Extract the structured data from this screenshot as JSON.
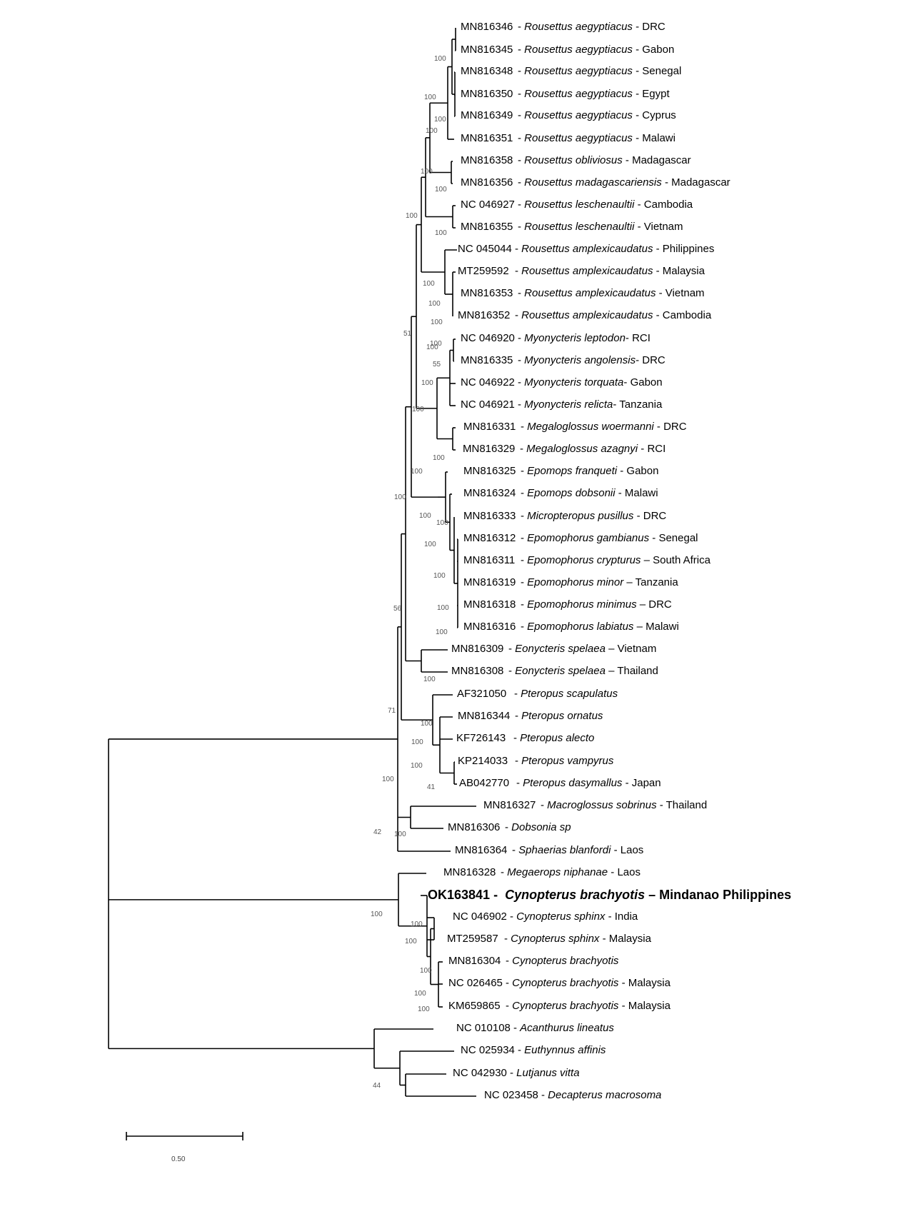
{
  "taxa": [
    {
      "acc": "MN816346",
      "sep": "- ",
      "sp": "Rousettus aegyptiacus",
      "loc": " - DRC"
    },
    {
      "acc": "MN816345",
      "sep": "- ",
      "sp": "Rousettus aegyptiacus",
      "loc": " - Gabon"
    },
    {
      "acc": "MN816348",
      "sep": "- ",
      "sp": "Rousettus aegyptiacus",
      "loc": " - Senegal"
    },
    {
      "acc": "MN816350",
      "sep": "- ",
      "sp": "Rousettus aegyptiacus",
      "loc": " - Egypt"
    },
    {
      "acc": "MN816349",
      "sep": "- ",
      "sp": "Rousettus aegyptiacus",
      "loc": " - Cyprus"
    },
    {
      "acc": "MN816351",
      "sep": "- ",
      "sp": "Rousettus aegyptiacus",
      "loc": " - Malawi"
    },
    {
      "acc": "MN816358",
      "sep": "- ",
      "sp": "Rousettus obliviosus",
      "loc": " - Madagascar"
    },
    {
      "acc": "MN816356",
      "sep": "- ",
      "sp": "Rousettus madagascariensis",
      "loc": " - Madagascar"
    },
    {
      "acc": "NC 046927",
      "sep": "- ",
      "sp": "Rousettus leschenaultii",
      "loc": " - Cambodia"
    },
    {
      "acc": "MN816355",
      "sep": "- ",
      "sp": "Rousettus leschenaultii",
      "loc": " - Vietnam"
    },
    {
      "acc": "NC 045044",
      "sep": "- ",
      "sp": "Rousettus amplexicaudatus",
      "loc": " - Philippines"
    },
    {
      "acc": "MT259592",
      "sep": "- ",
      "sp": "Rousettus amplexicaudatus",
      "loc": " - Malaysia"
    },
    {
      "acc": "MN816353",
      "sep": "- ",
      "sp": "Rousettus amplexicaudatus",
      "loc": " - Vietnam"
    },
    {
      "acc": "MN816352",
      "sep": "- ",
      "sp": "Rousettus amplexicaudatus",
      "loc": " - Cambodia"
    },
    {
      "acc": "NC 046920",
      "sep": "- ",
      "sp": "Myonycteris leptodon",
      "loc": "- RCI"
    },
    {
      "acc": "MN816335",
      "sep": "- ",
      "sp": "Myonycteris angolensis",
      "loc": "- DRC"
    },
    {
      "acc": "NC 046922",
      "sep": "- ",
      "sp": "Myonycteris torquata",
      "loc": "- Gabon"
    },
    {
      "acc": "NC 046921",
      "sep": "- ",
      "sp": "Myonycteris relicta",
      "loc": "- Tanzania"
    },
    {
      "acc": "MN816331",
      "sep": "- ",
      "sp": "Megaloglossus woermanni",
      "loc": " - DRC"
    },
    {
      "acc": "MN816329",
      "sep": "- ",
      "sp": "Megaloglossus azagnyi",
      "loc": " - RCI"
    },
    {
      "acc": "MN816325",
      "sep": "- ",
      "sp": "Epomops franqueti",
      "loc": " - Gabon"
    },
    {
      "acc": "MN816324",
      "sep": "- ",
      "sp": "Epomops dobsonii",
      "loc": " - Malawi"
    },
    {
      "acc": "MN816333",
      "sep": "- ",
      "sp": "Micropteropus pusillus",
      "loc": " - DRC"
    },
    {
      "acc": "MN816312",
      "sep": "- ",
      "sp": "Epomophorus gambianus",
      "loc": " - Senegal"
    },
    {
      "acc": "MN816311",
      "sep": "- ",
      "sp": "Epomophorus crypturus",
      "loc": " – South Africa"
    },
    {
      "acc": "MN816319",
      "sep": "- ",
      "sp": "Epomophorus minor",
      "loc": " – Tanzania"
    },
    {
      "acc": "MN816318",
      "sep": "- ",
      "sp": "Epomophorus minimus",
      "loc": " – DRC"
    },
    {
      "acc": "MN816316",
      "sep": "- ",
      "sp": "Epomophorus labiatus",
      "loc": " – Malawi"
    },
    {
      "acc": "MN816309",
      "sep": "- ",
      "sp": "Eonycteris spelaea",
      "loc": " – Vietnam"
    },
    {
      "acc": "MN816308",
      "sep": "- ",
      "sp": "Eonycteris spelaea",
      "loc": " – Thailand"
    },
    {
      "acc": "AF321050",
      "sep": "- ",
      "sp": "Pteropus scapulatus",
      "loc": ""
    },
    {
      "acc": "MN816344",
      "sep": "- ",
      "sp": "Pteropus ornatus",
      "loc": ""
    },
    {
      "acc": "KF726143",
      "sep": "- ",
      "sp": "Pteropus alecto",
      "loc": ""
    },
    {
      "acc": "KP214033",
      "sep": "- ",
      "sp": "Pteropus vampyrus",
      "loc": ""
    },
    {
      "acc": "AB042770",
      "sep": "- ",
      "sp": "Pteropus dasymallus",
      "loc": " - Japan"
    },
    {
      "acc": "MN816327",
      "sep": "- ",
      "sp": "Macroglossus sobrinus",
      "loc": " - Thailand"
    },
    {
      "acc": "MN816306",
      "sep": "- ",
      "sp": "Dobsonia sp",
      "loc": ""
    },
    {
      "acc": "MN816364",
      "sep": "- ",
      "sp": "Sphaerias blanfordi",
      "loc": " - Laos"
    },
    {
      "acc": "MN816328",
      "sep": "- ",
      "sp": "Megaerops niphanae",
      "loc": " - Laos"
    },
    {
      "acc": "OK163841 -",
      "sep": "",
      "sp": "Cynopterus  brachyotis",
      "loc": " – Mindanao  Philippines",
      "highlight": true
    },
    {
      "acc": "NC 046902",
      "sep": "- ",
      "sp": "Cynopterus sphinx",
      "loc": " - India"
    },
    {
      "acc": "MT259587",
      "sep": "- ",
      "sp": "Cynopterus sphinx",
      "loc": " - Malaysia"
    },
    {
      "acc": "MN816304",
      "sep": "- ",
      "sp": "Cynopterus brachyotis",
      "loc": ""
    },
    {
      "acc": "NC 026465",
      "sep": "- ",
      "sp": "Cynopterus brachyotis",
      "loc": " - Malaysia"
    },
    {
      "acc": "KM659865",
      "sep": "- ",
      "sp": "Cynopterus brachyotis",
      "loc": " - Malaysia"
    },
    {
      "acc": "NC 010108",
      "sep": "- ",
      "sp": "Acanthurus lineatus",
      "loc": ""
    },
    {
      "acc": "NC 025934",
      "sep": "- ",
      "sp": "Euthynnus affinis",
      "loc": ""
    },
    {
      "acc": "NC 042930",
      "sep": "- ",
      "sp": "Lutjanus vitta",
      "loc": ""
    },
    {
      "acc": "NC 023458",
      "sep": "- ",
      "sp": "Decapterus macrosoma",
      "loc": ""
    }
  ],
  "bootstrap": [
    "100",
    "100",
    "100",
    "100",
    "100",
    "100",
    "100",
    "100",
    "100",
    "100",
    "100",
    "100",
    "51",
    "100",
    "55",
    "100",
    "100",
    "100",
    "100",
    "100",
    "100",
    "100",
    "100",
    "100",
    "100",
    "100",
    "56",
    "100",
    "71",
    "100",
    "100",
    "100",
    "41",
    "100",
    "42",
    "100",
    "100",
    "100",
    "100",
    "100",
    "100",
    "100",
    "44"
  ],
  "scale_bar": {
    "label": "0.50"
  }
}
